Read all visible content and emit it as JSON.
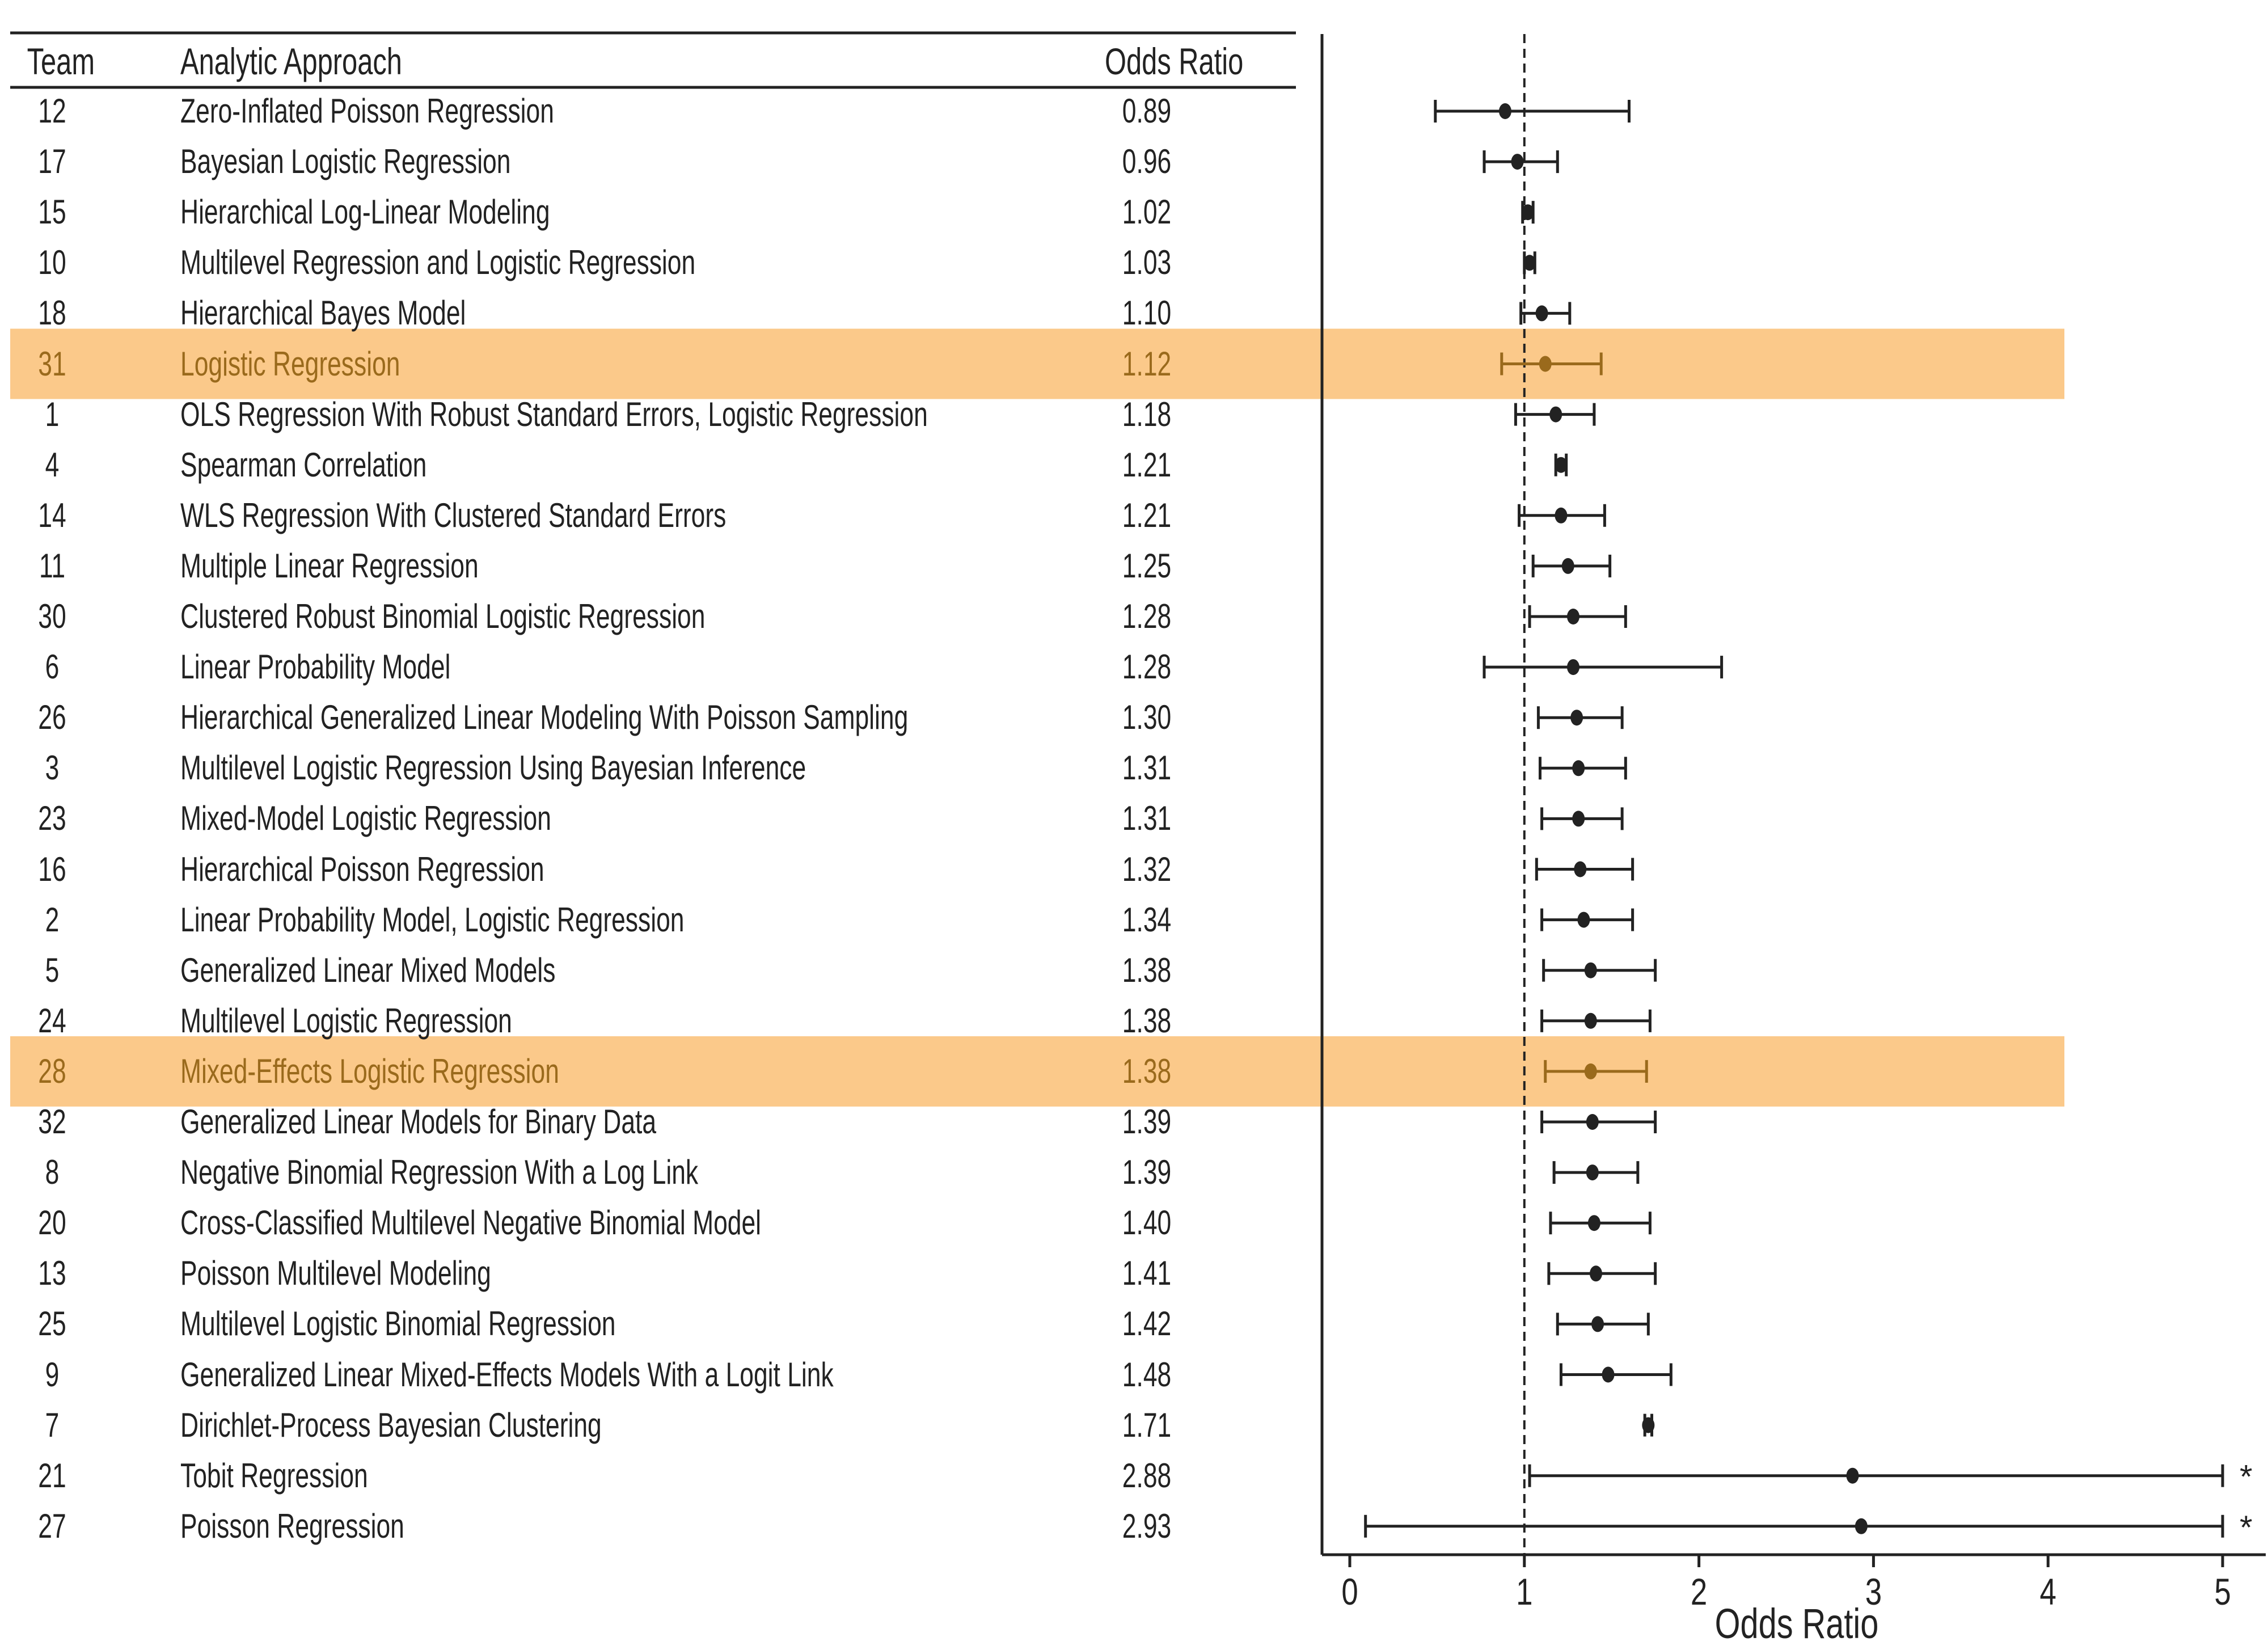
{
  "table": {
    "headers": {
      "team": "Team",
      "approach": "Analytic Approach",
      "odds_ratio": "Odds Ratio"
    },
    "rows": [
      {
        "team": "12",
        "approach": "Zero-Inflated Poisson Regression",
        "or": "0.89",
        "highlight": false
      },
      {
        "team": "17",
        "approach": "Bayesian Logistic Regression",
        "or": "0.96",
        "highlight": false
      },
      {
        "team": "15",
        "approach": "Hierarchical Log-Linear Modeling",
        "or": "1.02",
        "highlight": false
      },
      {
        "team": "10",
        "approach": "Multilevel Regression and Logistic Regression",
        "or": "1.03",
        "highlight": false
      },
      {
        "team": "18",
        "approach": "Hierarchical Bayes Model",
        "or": "1.10",
        "highlight": false
      },
      {
        "team": "31",
        "approach": "Logistic Regression",
        "or": "1.12",
        "highlight": true
      },
      {
        "team": "1",
        "approach": "OLS Regression With Robust Standard Errors, Logistic Regression",
        "or": "1.18",
        "highlight": false
      },
      {
        "team": "4",
        "approach": "Spearman Correlation",
        "or": "1.21",
        "highlight": false
      },
      {
        "team": "14",
        "approach": "WLS Regression With Clustered Standard Errors",
        "or": "1.21",
        "highlight": false
      },
      {
        "team": "11",
        "approach": "Multiple Linear Regression",
        "or": "1.25",
        "highlight": false
      },
      {
        "team": "30",
        "approach": "Clustered Robust Binomial Logistic Regression",
        "or": "1.28",
        "highlight": false
      },
      {
        "team": "6",
        "approach": "Linear Probability Model",
        "or": "1.28",
        "highlight": false
      },
      {
        "team": "26",
        "approach": "Hierarchical Generalized Linear Modeling With Poisson Sampling",
        "or": "1.30",
        "highlight": false
      },
      {
        "team": "3",
        "approach": "Multilevel Logistic Regression Using Bayesian Inference",
        "or": "1.31",
        "highlight": false
      },
      {
        "team": "23",
        "approach": "Mixed-Model Logistic Regression",
        "or": "1.31",
        "highlight": false
      },
      {
        "team": "16",
        "approach": "Hierarchical Poisson Regression",
        "or": "1.32",
        "highlight": false
      },
      {
        "team": "2",
        "approach": "Linear Probability Model, Logistic Regression",
        "or": "1.34",
        "highlight": false
      },
      {
        "team": "5",
        "approach": "Generalized Linear Mixed Models",
        "or": "1.38",
        "highlight": false
      },
      {
        "team": "24",
        "approach": "Multilevel Logistic Regression",
        "or": "1.38",
        "highlight": false
      },
      {
        "team": "28",
        "approach": "Mixed-Effects Logistic Regression",
        "or": "1.38",
        "highlight": true
      },
      {
        "team": "32",
        "approach": "Generalized Linear Models for Binary Data",
        "or": "1.39",
        "highlight": false
      },
      {
        "team": "8",
        "approach": "Negative Binomial Regression With a Log Link",
        "or": "1.39",
        "highlight": false
      },
      {
        "team": "20",
        "approach": "Cross-Classified Multilevel Negative Binomial Model",
        "or": "1.40",
        "highlight": false
      },
      {
        "team": "13",
        "approach": "Poisson Multilevel Modeling",
        "or": "1.41",
        "highlight": false
      },
      {
        "team": "25",
        "approach": "Multilevel Logistic Binomial Regression",
        "or": "1.42",
        "highlight": false
      },
      {
        "team": "9",
        "approach": "Generalized Linear Mixed-Effects Models With a Logit Link",
        "or": "1.48",
        "highlight": false
      },
      {
        "team": "7",
        "approach": "Dirichlet-Process Bayesian Clustering",
        "or": "1.71",
        "highlight": false
      },
      {
        "team": "21",
        "approach": "Tobit Regression",
        "or": "2.88",
        "highlight": false
      },
      {
        "team": "27",
        "approach": "Poisson Regression",
        "or": "2.93",
        "highlight": false
      }
    ]
  },
  "colors": {
    "highlight_band": "#fbc98a",
    "highlight_text": "#9a6a1c",
    "ink": "#222222"
  },
  "chart_data": {
    "type": "forest",
    "xlabel": "Odds Ratio",
    "xlim": [
      0,
      5
    ],
    "xticks": [
      "0",
      "1",
      "2",
      "3",
      "4",
      "5"
    ],
    "reference_line": 1,
    "truncation_marker": "*",
    "points": [
      {
        "team": "12",
        "or": 0.89,
        "lo": 0.49,
        "hi": 1.6
      },
      {
        "team": "17",
        "or": 0.96,
        "lo": 0.77,
        "hi": 1.19
      },
      {
        "team": "15",
        "or": 1.02,
        "lo": 0.99,
        "hi": 1.05
      },
      {
        "team": "10",
        "or": 1.03,
        "lo": 1.0,
        "hi": 1.06
      },
      {
        "team": "18",
        "or": 1.1,
        "lo": 0.98,
        "hi": 1.26
      },
      {
        "team": "31",
        "or": 1.12,
        "lo": 0.87,
        "hi": 1.44
      },
      {
        "team": "1",
        "or": 1.18,
        "lo": 0.95,
        "hi": 1.4
      },
      {
        "team": "4",
        "or": 1.21,
        "lo": 1.18,
        "hi": 1.24
      },
      {
        "team": "14",
        "or": 1.21,
        "lo": 0.97,
        "hi": 1.46
      },
      {
        "team": "11",
        "or": 1.25,
        "lo": 1.05,
        "hi": 1.49
      },
      {
        "team": "30",
        "or": 1.28,
        "lo": 1.03,
        "hi": 1.58
      },
      {
        "team": "6",
        "or": 1.28,
        "lo": 0.77,
        "hi": 2.13
      },
      {
        "team": "26",
        "or": 1.3,
        "lo": 1.08,
        "hi": 1.56
      },
      {
        "team": "3",
        "or": 1.31,
        "lo": 1.09,
        "hi": 1.58
      },
      {
        "team": "23",
        "or": 1.31,
        "lo": 1.1,
        "hi": 1.56
      },
      {
        "team": "16",
        "or": 1.32,
        "lo": 1.07,
        "hi": 1.62
      },
      {
        "team": "2",
        "or": 1.34,
        "lo": 1.1,
        "hi": 1.62
      },
      {
        "team": "5",
        "or": 1.38,
        "lo": 1.11,
        "hi": 1.75
      },
      {
        "team": "24",
        "or": 1.38,
        "lo": 1.1,
        "hi": 1.72
      },
      {
        "team": "28",
        "or": 1.38,
        "lo": 1.12,
        "hi": 1.7
      },
      {
        "team": "32",
        "or": 1.39,
        "lo": 1.1,
        "hi": 1.75
      },
      {
        "team": "8",
        "or": 1.39,
        "lo": 1.17,
        "hi": 1.65
      },
      {
        "team": "20",
        "or": 1.4,
        "lo": 1.15,
        "hi": 1.72
      },
      {
        "team": "13",
        "or": 1.41,
        "lo": 1.14,
        "hi": 1.75
      },
      {
        "team": "25",
        "or": 1.42,
        "lo": 1.19,
        "hi": 1.71
      },
      {
        "team": "9",
        "or": 1.48,
        "lo": 1.21,
        "hi": 1.84
      },
      {
        "team": "7",
        "or": 1.71,
        "lo": 1.69,
        "hi": 1.73
      },
      {
        "team": "21",
        "or": 2.88,
        "lo": 1.03,
        "hi": 5.0,
        "truncated": true
      },
      {
        "team": "27",
        "or": 2.93,
        "lo": 0.09,
        "hi": 5.0,
        "truncated": true
      }
    ]
  }
}
